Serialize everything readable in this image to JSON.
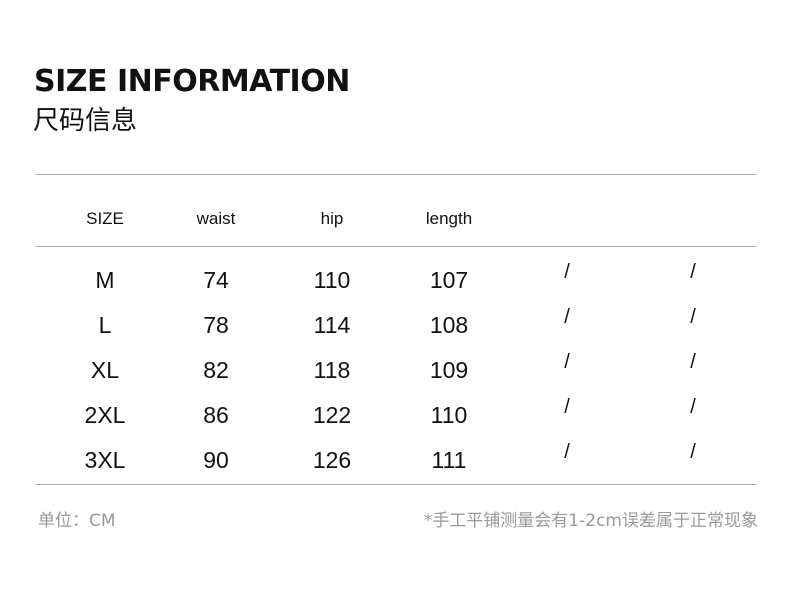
{
  "title": "SIZE INFORMATION",
  "subtitle": "尺码信息",
  "table": {
    "headers": [
      "SIZE",
      "waist",
      "hip",
      "length",
      "",
      ""
    ],
    "rows": [
      [
        "M",
        "74",
        "110",
        "107",
        "/",
        "/"
      ],
      [
        "L",
        "78",
        "114",
        "108",
        "/",
        "/"
      ],
      [
        "XL",
        "82",
        "118",
        "109",
        "/",
        "/"
      ],
      [
        "2XL",
        "86",
        "122",
        "110",
        "/",
        "/"
      ],
      [
        "3XL",
        "90",
        "126",
        "111",
        "/",
        "/"
      ]
    ]
  },
  "footer": {
    "unit": "单位：CM",
    "note": "*手工平铺测量会有1-2cm误差属于正常现象"
  }
}
